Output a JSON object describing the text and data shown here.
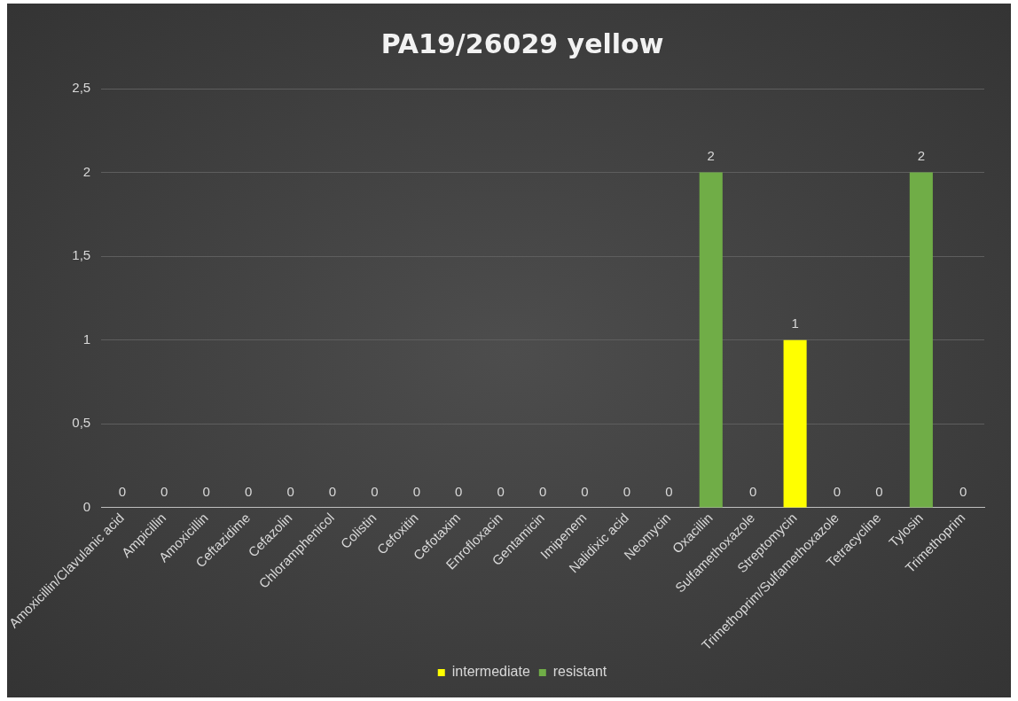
{
  "chart_data": {
    "type": "bar",
    "title": "PA19/26029 yellow",
    "categories": [
      "Amoxicillin/Clavulanic acid",
      "Ampicillin",
      "Amoxicillin",
      "Ceftazidime",
      "Cefazolin",
      "Chloramphenicol",
      "Colistin",
      "Cefoxitin",
      "Cefotaxim",
      "Enrofloxacin",
      "Gentamicin",
      "Imipenem",
      "Nalidixic acid",
      "Neomycin",
      "Oxacillin",
      "Sulfamethoxazole",
      "Streptomycin",
      "Trimethoprim/Sulfamethoxazole",
      "Tetracycline",
      "Tylosin",
      "Trimethoprim"
    ],
    "series": [
      {
        "name": "intermediate",
        "color": "#ffff00",
        "values": [
          null,
          null,
          null,
          null,
          null,
          null,
          null,
          null,
          null,
          null,
          null,
          null,
          null,
          null,
          null,
          null,
          1,
          null,
          null,
          null,
          null
        ]
      },
      {
        "name": "resistant",
        "color": "#70ad47",
        "values": [
          0,
          0,
          0,
          0,
          0,
          0,
          0,
          0,
          0,
          0,
          0,
          0,
          0,
          0,
          2,
          0,
          null,
          0,
          0,
          2,
          0
        ]
      }
    ],
    "ylim": [
      0,
      2.5
    ],
    "yticks": [
      0,
      {
        "value": 0.5,
        "label": "0,5"
      },
      1,
      {
        "value": 1.5,
        "label": "1,5"
      },
      2,
      {
        "value": 2.5,
        "label": "2,5"
      }
    ],
    "grid": "y",
    "legend": "bottom",
    "data_labels": true
  }
}
